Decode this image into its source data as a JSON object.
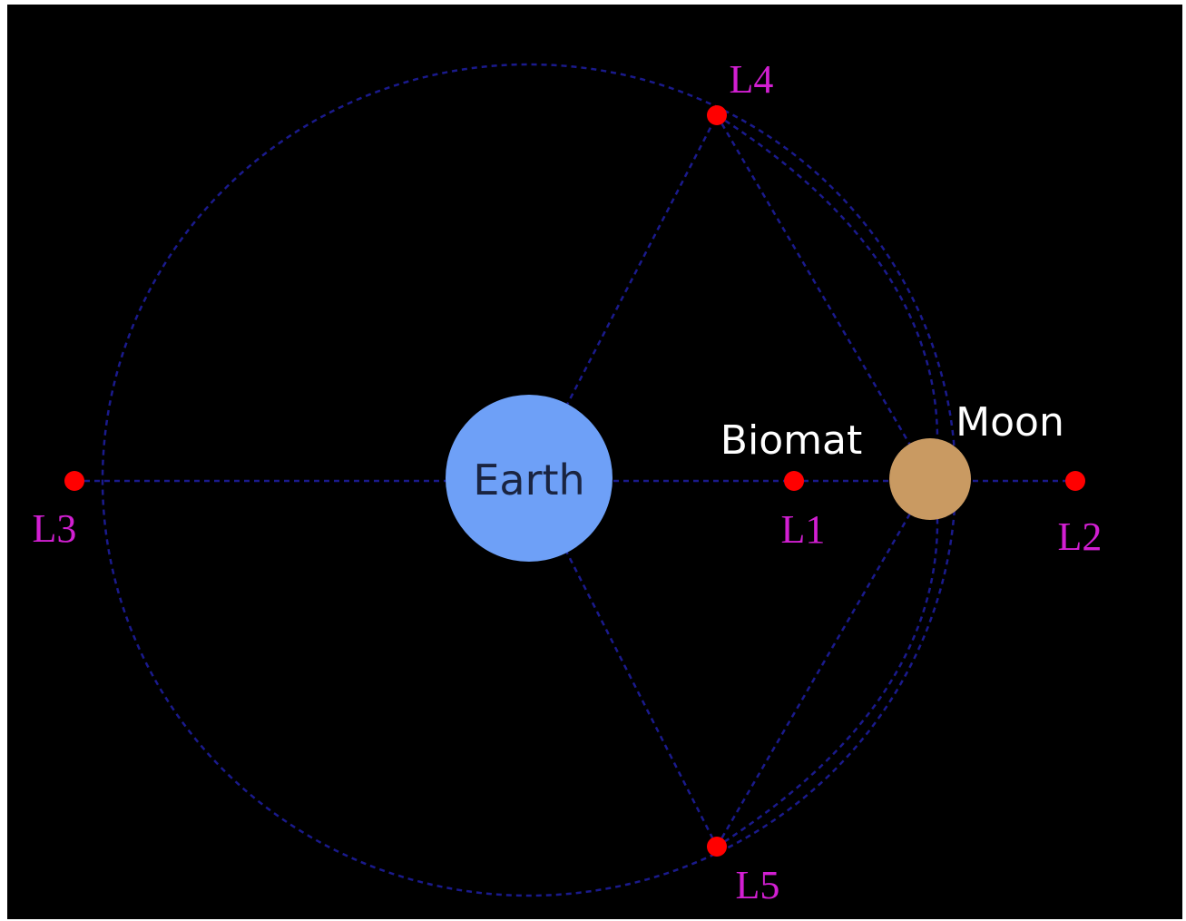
{
  "nodes": [
    {
      "label": "Earth"
    },
    {
      "label": "Moon"
    },
    {
      "label": "Biomat"
    },
    {
      "label": "L1"
    },
    {
      "label": "L2"
    },
    {
      "label": "L3"
    },
    {
      "label": "L4"
    },
    {
      "label": "L5"
    }
  ]
}
